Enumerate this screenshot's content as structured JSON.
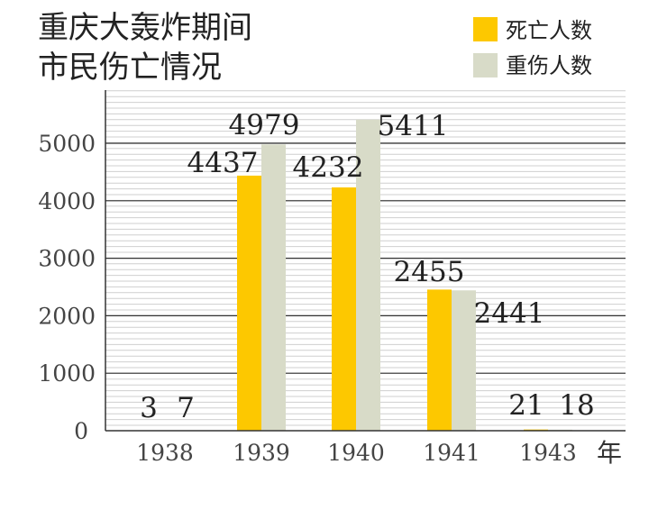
{
  "chart_data": {
    "type": "bar",
    "title_lines": [
      "重庆大轰炸期间",
      "市民伤亡情况"
    ],
    "categories": [
      "1938",
      "1939",
      "1940",
      "1941",
      "1943"
    ],
    "x_unit": "年",
    "series": [
      {
        "name": "死亡人数",
        "values": [
          3,
          4437,
          4232,
          2455,
          21
        ],
        "color": "#fdc800"
      },
      {
        "name": "重伤人数",
        "values": [
          7,
          4979,
          5411,
          2441,
          18
        ],
        "color": "#d8dbc8"
      }
    ],
    "ylim": [
      0,
      5900
    ],
    "yticks": [
      0,
      1000,
      2000,
      3000,
      4000,
      5000
    ],
    "legend_position": "top-right",
    "grid": true
  }
}
